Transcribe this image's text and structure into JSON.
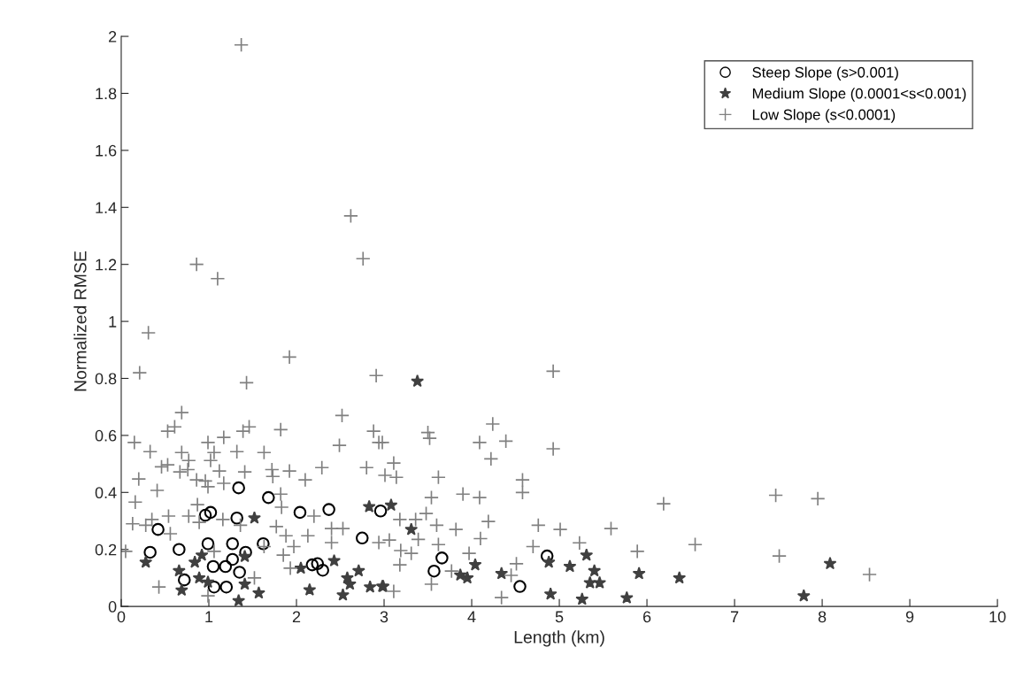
{
  "chart_data": {
    "type": "scatter",
    "xlabel": "Length (km)",
    "ylabel": "Normalized RMSE",
    "xlim": [
      0,
      10
    ],
    "ylim": [
      0,
      2
    ],
    "xticks": [
      0,
      1,
      2,
      3,
      4,
      5,
      6,
      7,
      8,
      9,
      10
    ],
    "yticks": [
      0,
      0.2,
      0.4,
      0.6,
      0.8,
      1,
      1.2,
      1.4,
      1.6,
      1.8,
      2
    ],
    "grid": false,
    "legend": "top right",
    "series": [
      {
        "name": "Steep Slope (s>0.001)",
        "color": "#000000",
        "marker": "circle",
        "x": [
          1.34,
          1.68,
          1.02,
          0.96,
          1.32,
          2.04,
          2.37,
          0.42,
          2.75,
          0.99,
          1.62,
          1.27,
          0.66,
          0.33,
          1.42,
          1.27,
          1.05,
          1.19,
          1.35,
          2.18,
          2.24,
          2.3,
          0.72,
          1.06,
          1.2,
          3.66,
          3.57,
          4.55,
          4.86,
          2.96
        ],
        "values": [
          0.416,
          0.382,
          0.33,
          0.32,
          0.31,
          0.33,
          0.34,
          0.27,
          0.24,
          0.22,
          0.22,
          0.22,
          0.2,
          0.19,
          0.19,
          0.165,
          0.14,
          0.14,
          0.12,
          0.146,
          0.15,
          0.127,
          0.093,
          0.068,
          0.068,
          0.17,
          0.124,
          0.07,
          0.177,
          0.335
        ]
      },
      {
        "name": "Medium Slope (0.0001<s<0.001)",
        "color": "#404040",
        "marker": "star",
        "x": [
          3.38,
          0.28,
          0.66,
          0.69,
          0.84,
          0.92,
          0.89,
          0.99,
          1.41,
          1.41,
          1.34,
          1.57,
          1.52,
          2.05,
          2.15,
          2.43,
          2.58,
          2.71,
          2.53,
          2.61,
          2.84,
          2.98,
          2.83,
          3.08,
          2.99,
          3.31,
          3.87,
          3.95,
          4.04,
          4.34,
          4.88,
          4.9,
          5.12,
          5.31,
          5.4,
          5.35,
          5.46,
          5.26,
          5.77,
          5.91,
          6.37,
          8.09,
          7.79
        ],
        "values": [
          0.79,
          0.155,
          0.125,
          0.057,
          0.155,
          0.18,
          0.1,
          0.085,
          0.175,
          0.078,
          0.02,
          0.047,
          0.31,
          0.134,
          0.058,
          0.16,
          0.1,
          0.125,
          0.04,
          0.078,
          0.068,
          0.07,
          0.35,
          0.355,
          0.07,
          0.27,
          0.11,
          0.1,
          0.146,
          0.115,
          0.155,
          0.043,
          0.14,
          0.18,
          0.125,
          0.083,
          0.083,
          0.025,
          0.03,
          0.115,
          0.1,
          0.15,
          0.037
        ]
      },
      {
        "name": "Low Slope (s<0.0001)",
        "color": "#808080",
        "marker": "cross",
        "x": [
          1.37,
          0.86,
          1.1,
          2.62,
          2.76,
          0.31,
          1.92,
          0.21,
          1.43,
          2.91,
          0.69,
          2.52,
          0.53,
          0.61,
          1.46,
          1.39,
          1.82,
          0.15,
          0.99,
          1.17,
          2.88,
          2.94,
          2.49,
          0.33,
          0.69,
          1.06,
          1.32,
          1.63,
          0.77,
          1.02,
          0.46,
          0.53,
          0.76,
          0.67,
          1.12,
          1.41,
          1.72,
          1.92,
          2.29,
          2.8,
          1.73,
          2.1,
          0.2,
          0.86,
          0.96,
          1.17,
          0.41,
          0.99,
          1.82,
          0.16,
          0.87,
          1.83,
          2.2,
          0.35,
          0.54,
          0.77,
          1.16,
          0.13,
          0.28,
          0.89,
          1.36,
          1.77,
          2.4,
          2.53,
          0.56,
          1.88,
          2.13,
          2.4,
          1.97,
          0.05,
          1.06,
          1.85,
          1.63,
          1.93,
          1.52,
          0.43,
          0.99,
          2.94,
          4.93,
          4.93,
          4.24,
          4.39,
          4.09,
          4.22,
          3.5,
          3.52,
          2.98,
          3.11,
          3.01,
          3.14,
          3.62,
          4.58,
          4.58,
          3.54,
          3.9,
          4.09,
          3.48,
          3.18,
          3.36,
          3.6,
          3.82,
          4.19,
          4.76,
          5.01,
          5.59,
          3.39,
          4.1,
          5.23,
          5.89,
          3.06,
          3.19,
          3.31,
          3.62,
          3.97,
          4.7,
          3.18,
          3.77,
          4.51,
          4.45,
          3.54,
          3.11,
          4.34,
          6.19,
          7.47,
          7.95,
          6.55,
          7.51,
          8.54
        ],
        "values": [
          1.97,
          1.2,
          1.15,
          1.37,
          1.22,
          0.96,
          0.875,
          0.82,
          0.785,
          0.81,
          0.68,
          0.67,
          0.615,
          0.63,
          0.63,
          0.615,
          0.62,
          0.575,
          0.575,
          0.593,
          0.615,
          0.575,
          0.565,
          0.543,
          0.54,
          0.54,
          0.543,
          0.54,
          0.512,
          0.512,
          0.49,
          0.497,
          0.48,
          0.472,
          0.475,
          0.472,
          0.48,
          0.475,
          0.487,
          0.487,
          0.456,
          0.444,
          0.447,
          0.444,
          0.44,
          0.432,
          0.407,
          0.42,
          0.394,
          0.366,
          0.357,
          0.348,
          0.317,
          0.305,
          0.317,
          0.317,
          0.305,
          0.29,
          0.285,
          0.295,
          0.285,
          0.28,
          0.273,
          0.273,
          0.255,
          0.248,
          0.248,
          0.224,
          0.21,
          0.193,
          0.193,
          0.18,
          0.21,
          0.134,
          0.1,
          0.068,
          0.037,
          0.224,
          0.825,
          0.553,
          0.64,
          0.58,
          0.575,
          0.518,
          0.61,
          0.59,
          0.575,
          0.503,
          0.46,
          0.453,
          0.453,
          0.444,
          0.4,
          0.382,
          0.394,
          0.382,
          0.326,
          0.305,
          0.305,
          0.285,
          0.27,
          0.298,
          0.285,
          0.27,
          0.273,
          0.235,
          0.238,
          0.223,
          0.193,
          0.233,
          0.196,
          0.186,
          0.217,
          0.186,
          0.21,
          0.146,
          0.124,
          0.15,
          0.109,
          0.078,
          0.053,
          0.031,
          0.36,
          0.39,
          0.378,
          0.217,
          0.177,
          0.112
        ]
      }
    ]
  }
}
